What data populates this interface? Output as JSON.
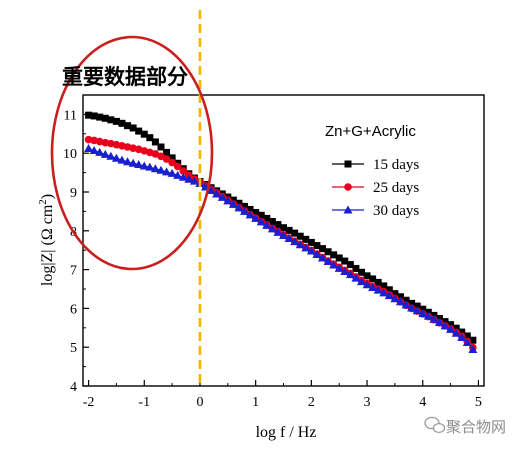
{
  "chart_data": {
    "type": "scatter",
    "xlabel": "log f / Hz",
    "ylabel": "log|Z| (Ω cm²)",
    "ylabel_parts": {
      "base": "log|Z| (Ω cm",
      "sup": "2",
      "close": ")"
    },
    "xlim": [
      -2.1,
      5.1
    ],
    "ylim": [
      4,
      11.5
    ],
    "x_ticks": [
      -2,
      -1,
      0,
      1,
      2,
      3,
      4,
      5
    ],
    "x_tick_labels": [
      "-2",
      "-1",
      "0",
      "1",
      "2",
      "3",
      "4",
      "5"
    ],
    "y_ticks": [
      4,
      5,
      6,
      7,
      8,
      9,
      10,
      11
    ],
    "y_tick_labels": [
      "4",
      "5",
      "6",
      "7",
      "8",
      "9",
      "10",
      "11"
    ],
    "grid": false,
    "legend_title": "Zn+G+Acrylic",
    "legend_placement": "top-right",
    "series": [
      {
        "name": "15 days",
        "color": "#000000",
        "marker": "square",
        "x": [
          -2.0,
          -1.9,
          -1.8,
          -1.7,
          -1.6,
          -1.5,
          -1.4,
          -1.3,
          -1.2,
          -1.1,
          -1.0,
          -0.9,
          -0.8,
          -0.7,
          -0.6,
          -0.5,
          -0.4,
          -0.3,
          -0.2,
          -0.1,
          0.0,
          0.1,
          0.2,
          0.3,
          0.4,
          0.5,
          0.6,
          0.7,
          0.8,
          0.9,
          1.0,
          1.1,
          1.2,
          1.3,
          1.4,
          1.5,
          1.6,
          1.7,
          1.8,
          1.9,
          2.0,
          2.1,
          2.2,
          2.3,
          2.4,
          2.5,
          2.6,
          2.7,
          2.8,
          2.9,
          3.0,
          3.1,
          3.2,
          3.3,
          3.4,
          3.5,
          3.6,
          3.7,
          3.8,
          3.9,
          4.0,
          4.1,
          4.2,
          4.3,
          4.4,
          4.5,
          4.6,
          4.7,
          4.8,
          4.9
        ],
        "y": [
          10.98,
          10.96,
          10.93,
          10.9,
          10.86,
          10.82,
          10.77,
          10.71,
          10.65,
          10.57,
          10.49,
          10.4,
          10.29,
          10.16,
          10.02,
          9.88,
          9.74,
          9.6,
          9.47,
          9.36,
          9.27,
          9.19,
          9.11,
          9.03,
          8.95,
          8.87,
          8.79,
          8.71,
          8.63,
          8.55,
          8.47,
          8.4,
          8.32,
          8.24,
          8.16,
          8.08,
          8.01,
          7.94,
          7.86,
          7.78,
          7.7,
          7.62,
          7.54,
          7.46,
          7.38,
          7.3,
          7.22,
          7.13,
          7.03,
          6.93,
          6.84,
          6.76,
          6.67,
          6.58,
          6.48,
          6.38,
          6.3,
          6.21,
          6.13,
          6.06,
          5.98,
          5.9,
          5.82,
          5.74,
          5.66,
          5.58,
          5.49,
          5.39,
          5.29,
          5.18
        ]
      },
      {
        "name": "25 days",
        "color": "#e8001c",
        "marker": "circle",
        "x": [
          -2.0,
          -1.9,
          -1.8,
          -1.7,
          -1.6,
          -1.5,
          -1.4,
          -1.3,
          -1.2,
          -1.1,
          -1.0,
          -0.9,
          -0.8,
          -0.7,
          -0.6,
          -0.5,
          -0.4,
          -0.3,
          -0.2,
          -0.1,
          0.0,
          0.1,
          0.2,
          0.3,
          0.4,
          0.5,
          0.6,
          0.7,
          0.8,
          0.9,
          1.0,
          1.1,
          1.2,
          1.3,
          1.4,
          1.5,
          1.6,
          1.7,
          1.8,
          1.9,
          2.0,
          2.1,
          2.2,
          2.3,
          2.4,
          2.5,
          2.6,
          2.7,
          2.8,
          2.9,
          3.0,
          3.1,
          3.2,
          3.3,
          3.4,
          3.5,
          3.6,
          3.7,
          3.8,
          3.9,
          4.0,
          4.1,
          4.2,
          4.3,
          4.4,
          4.5,
          4.6,
          4.7,
          4.8,
          4.9
        ],
        "y": [
          10.35,
          10.33,
          10.3,
          10.27,
          10.25,
          10.22,
          10.19,
          10.16,
          10.13,
          10.1,
          10.06,
          10.02,
          9.98,
          9.92,
          9.85,
          9.76,
          9.66,
          9.54,
          9.43,
          9.33,
          9.25,
          9.16,
          9.07,
          8.98,
          8.88,
          8.79,
          8.69,
          8.6,
          8.51,
          8.42,
          8.33,
          8.24,
          8.15,
          8.06,
          7.98,
          7.89,
          7.81,
          7.73,
          7.65,
          7.57,
          7.49,
          7.4,
          7.31,
          7.22,
          7.14,
          7.06,
          6.98,
          6.9,
          6.81,
          6.72,
          6.64,
          6.56,
          6.5,
          6.43,
          6.35,
          6.26,
          6.17,
          6.08,
          6.0,
          5.93,
          5.86,
          5.79,
          5.71,
          5.63,
          5.55,
          5.47,
          5.38,
          5.28,
          5.15,
          4.99
        ]
      },
      {
        "name": "30 days",
        "color": "#1a1fcf",
        "marker": "triangle",
        "x": [
          -2.0,
          -1.9,
          -1.8,
          -1.7,
          -1.6,
          -1.5,
          -1.4,
          -1.3,
          -1.2,
          -1.1,
          -1.0,
          -0.9,
          -0.8,
          -0.7,
          -0.6,
          -0.5,
          -0.4,
          -0.3,
          -0.2,
          -0.1,
          0.0,
          0.1,
          0.2,
          0.3,
          0.4,
          0.5,
          0.6,
          0.7,
          0.8,
          0.9,
          1.0,
          1.1,
          1.2,
          1.3,
          1.4,
          1.5,
          1.6,
          1.7,
          1.8,
          1.9,
          2.0,
          2.1,
          2.2,
          2.3,
          2.4,
          2.5,
          2.6,
          2.7,
          2.8,
          2.9,
          3.0,
          3.1,
          3.2,
          3.3,
          3.4,
          3.5,
          3.6,
          3.7,
          3.8,
          3.9,
          4.0,
          4.1,
          4.2,
          4.3,
          4.4,
          4.5,
          4.6,
          4.7,
          4.8,
          4.9
        ],
        "y": [
          10.12,
          10.07,
          10.02,
          9.97,
          9.92,
          9.87,
          9.82,
          9.78,
          9.74,
          9.71,
          9.67,
          9.64,
          9.6,
          9.56,
          9.52,
          9.48,
          9.43,
          9.38,
          9.33,
          9.28,
          9.22,
          9.13,
          9.04,
          8.95,
          8.86,
          8.77,
          8.68,
          8.59,
          8.5,
          8.41,
          8.32,
          8.23,
          8.14,
          8.05,
          7.96,
          7.88,
          7.8,
          7.72,
          7.64,
          7.56,
          7.48,
          7.39,
          7.3,
          7.21,
          7.12,
          7.03,
          6.95,
          6.87,
          6.78,
          6.69,
          6.61,
          6.54,
          6.47,
          6.4,
          6.33,
          6.25,
          6.17,
          6.09,
          6.01,
          5.94,
          5.87,
          5.8,
          5.72,
          5.64,
          5.55,
          5.46,
          5.36,
          5.25,
          5.12,
          4.94
        ]
      }
    ]
  },
  "annotations": {
    "callout_text": "重要数据部分",
    "vertical_line_x": 0,
    "vertical_line_color": "#f5b400",
    "ellipse_color": "#c91f1f"
  },
  "watermark": {
    "text": "聚合物网"
  }
}
